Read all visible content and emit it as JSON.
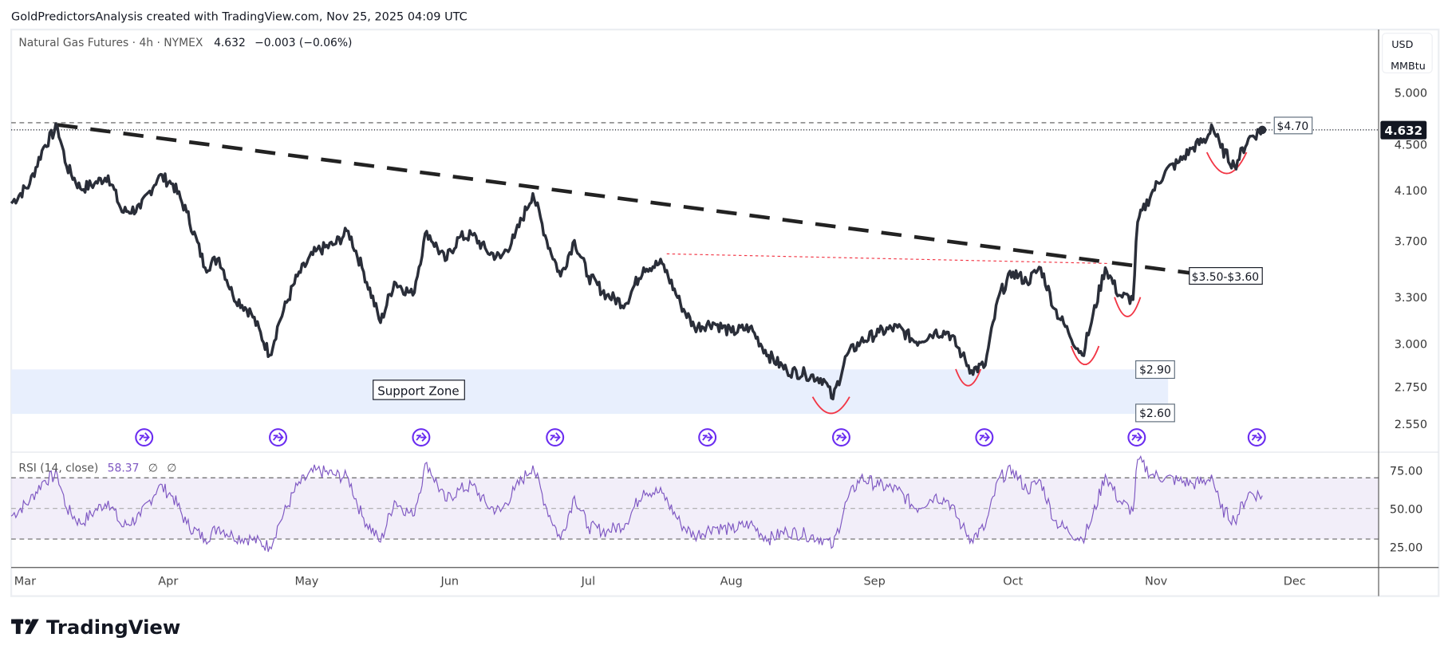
{
  "header": {
    "attribution": "GoldPredictorsAnalysis created with TradingView.com, Nov 25, 2025 04:09 UTC"
  },
  "legend": {
    "symbol": "Natural Gas Futures · 4h · NYMEX",
    "last": "4.632",
    "change": "−0.003 (−0.06%)"
  },
  "axis_unit": {
    "currency": "USD",
    "unit": "MMBtu"
  },
  "current_price_label": "4.632",
  "rsi_legend": {
    "name": "RSI (14, close)",
    "value": "58.37",
    "extra1": "∅",
    "extra2": "∅"
  },
  "annotations": {
    "resistance_label": "$4.70",
    "breakout_label": "$3.50-$3.60",
    "support_top_label": "$2.90",
    "support_bottom_label": "$2.60",
    "support_zone_label": "Support Zone"
  },
  "branding": {
    "logo_text": "TradingView"
  },
  "colors": {
    "price": "#2a2e39",
    "rsi": "#7e57c2",
    "accent": "#6a2cf0",
    "arc": "#f23645",
    "support": "#e8effd"
  },
  "chart_data": {
    "type": "line",
    "title": "Natural Gas Futures · 4h · NYMEX",
    "ylabel": "USD / MMBtu",
    "yscale": "log",
    "ylim": [
      2.5,
      5.05
    ],
    "price_ticks": [
      "5.000",
      "4.500",
      "4.100",
      "3.700",
      "3.300",
      "3.000",
      "2.750",
      "2.550"
    ],
    "month_ticks": [
      "Mar",
      "Apr",
      "May",
      "Jun",
      "Jul",
      "Aug",
      "Sep",
      "Oct",
      "Nov",
      "Dec"
    ],
    "x_unit": "days since 2025-03-01",
    "series": [
      {
        "name": "Close",
        "points": [
          [
            -2,
            3.99
          ],
          [
            2,
            4.15
          ],
          [
            5,
            4.47
          ],
          [
            8,
            4.66
          ],
          [
            10,
            4.3
          ],
          [
            13,
            4.11
          ],
          [
            16,
            4.15
          ],
          [
            19,
            4.22
          ],
          [
            22,
            3.92
          ],
          [
            26,
            3.95
          ],
          [
            30,
            4.22
          ],
          [
            33,
            4.15
          ],
          [
            36,
            3.92
          ],
          [
            40,
            3.5
          ],
          [
            43,
            3.57
          ],
          [
            46,
            3.31
          ],
          [
            50,
            3.19
          ],
          [
            54,
            2.93
          ],
          [
            56,
            3.13
          ],
          [
            60,
            3.44
          ],
          [
            64,
            3.62
          ],
          [
            68,
            3.67
          ],
          [
            71,
            3.77
          ],
          [
            74,
            3.5
          ],
          [
            78,
            3.13
          ],
          [
            81,
            3.4
          ],
          [
            85,
            3.31
          ],
          [
            88,
            3.77
          ],
          [
            92,
            3.55
          ],
          [
            95,
            3.72
          ],
          [
            98,
            3.74
          ],
          [
            101,
            3.62
          ],
          [
            104,
            3.57
          ],
          [
            107,
            3.72
          ],
          [
            111,
            4.07
          ],
          [
            114,
            3.7
          ],
          [
            117,
            3.44
          ],
          [
            120,
            3.7
          ],
          [
            123,
            3.44
          ],
          [
            127,
            3.31
          ],
          [
            131,
            3.25
          ],
          [
            135,
            3.5
          ],
          [
            139,
            3.53
          ],
          [
            143,
            3.25
          ],
          [
            146,
            3.1
          ],
          [
            150,
            3.13
          ],
          [
            154,
            3.07
          ],
          [
            158,
            3.1
          ],
          [
            162,
            2.93
          ],
          [
            166,
            2.84
          ],
          [
            170,
            2.82
          ],
          [
            174,
            2.79
          ],
          [
            176,
            2.68
          ],
          [
            179,
            2.93
          ],
          [
            182,
            3.01
          ],
          [
            186,
            3.07
          ],
          [
            190,
            3.1
          ],
          [
            194,
            3.01
          ],
          [
            198,
            3.07
          ],
          [
            201,
            3.07
          ],
          [
            204,
            2.93
          ],
          [
            206,
            2.84
          ],
          [
            209,
            2.87
          ],
          [
            212,
            3.31
          ],
          [
            215,
            3.47
          ],
          [
            218,
            3.4
          ],
          [
            221,
            3.5
          ],
          [
            224,
            3.22
          ],
          [
            227,
            3.07
          ],
          [
            230,
            2.93
          ],
          [
            232,
            3.13
          ],
          [
            235,
            3.5
          ],
          [
            238,
            3.31
          ],
          [
            241,
            3.28
          ],
          [
            242,
            3.84
          ],
          [
            245,
            4.07
          ],
          [
            248,
            4.26
          ],
          [
            251,
            4.34
          ],
          [
            254,
            4.47
          ],
          [
            257,
            4.55
          ],
          [
            258,
            4.68
          ],
          [
            260,
            4.47
          ],
          [
            263,
            4.3
          ],
          [
            266,
            4.55
          ],
          [
            269,
            4.632
          ]
        ]
      }
    ],
    "rsi": {
      "period": 14,
      "ticks": [
        "75.00",
        "50.00",
        "25.00"
      ],
      "bands": [
        70,
        30
      ],
      "points": [
        [
          -2,
          45
        ],
        [
          2,
          55
        ],
        [
          5,
          68
        ],
        [
          8,
          72
        ],
        [
          10,
          50
        ],
        [
          13,
          40
        ],
        [
          16,
          48
        ],
        [
          19,
          55
        ],
        [
          22,
          38
        ],
        [
          26,
          45
        ],
        [
          30,
          65
        ],
        [
          33,
          58
        ],
        [
          36,
          40
        ],
        [
          40,
          30
        ],
        [
          43,
          38
        ],
        [
          46,
          32
        ],
        [
          50,
          30
        ],
        [
          54,
          25
        ],
        [
          56,
          40
        ],
        [
          60,
          65
        ],
        [
          64,
          75
        ],
        [
          68,
          72
        ],
        [
          71,
          70
        ],
        [
          74,
          45
        ],
        [
          78,
          28
        ],
        [
          81,
          55
        ],
        [
          85,
          45
        ],
        [
          88,
          80
        ],
        [
          92,
          55
        ],
        [
          95,
          62
        ],
        [
          98,
          65
        ],
        [
          101,
          52
        ],
        [
          104,
          48
        ],
        [
          107,
          62
        ],
        [
          111,
          78
        ],
        [
          114,
          50
        ],
        [
          117,
          30
        ],
        [
          120,
          58
        ],
        [
          123,
          38
        ],
        [
          127,
          35
        ],
        [
          131,
          40
        ],
        [
          135,
          62
        ],
        [
          139,
          60
        ],
        [
          143,
          40
        ],
        [
          146,
          32
        ],
        [
          150,
          38
        ],
        [
          154,
          36
        ],
        [
          158,
          40
        ],
        [
          162,
          30
        ],
        [
          166,
          35
        ],
        [
          170,
          33
        ],
        [
          174,
          30
        ],
        [
          176,
          25
        ],
        [
          179,
          55
        ],
        [
          182,
          70
        ],
        [
          186,
          65
        ],
        [
          190,
          62
        ],
        [
          194,
          50
        ],
        [
          198,
          58
        ],
        [
          201,
          55
        ],
        [
          204,
          38
        ],
        [
          206,
          30
        ],
        [
          209,
          38
        ],
        [
          212,
          70
        ],
        [
          215,
          75
        ],
        [
          218,
          62
        ],
        [
          221,
          68
        ],
        [
          224,
          42
        ],
        [
          227,
          35
        ],
        [
          230,
          30
        ],
        [
          232,
          42
        ],
        [
          235,
          72
        ],
        [
          238,
          55
        ],
        [
          241,
          48
        ],
        [
          242,
          82
        ],
        [
          245,
          72
        ],
        [
          248,
          70
        ],
        [
          251,
          68
        ],
        [
          254,
          66
        ],
        [
          257,
          68
        ],
        [
          258,
          72
        ],
        [
          260,
          50
        ],
        [
          263,
          42
        ],
        [
          266,
          60
        ],
        [
          269,
          58.37
        ]
      ]
    },
    "trendline": {
      "from": [
        8,
        4.68
      ],
      "to": [
        254,
        3.46
      ]
    },
    "neckline": {
      "from": [
        140,
        3.6
      ],
      "to": [
        236,
        3.53
      ]
    },
    "resistance_level": 4.7,
    "support_zone": [
      2.6,
      2.9
    ],
    "rounded_bottoms_days": [
      176,
      207,
      231,
      240,
      262
    ],
    "event_markers_days": [
      27,
      56,
      87,
      116,
      149,
      178,
      209,
      242,
      268
    ]
  }
}
